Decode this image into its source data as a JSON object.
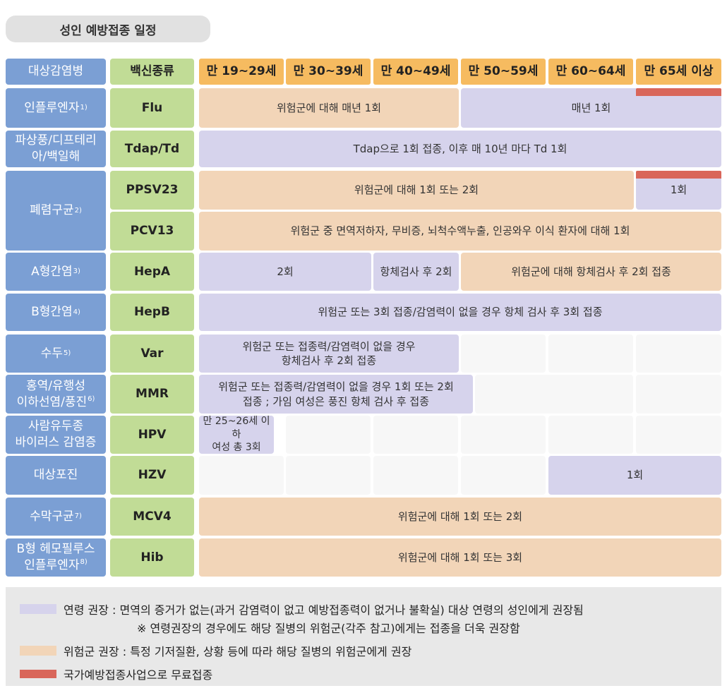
{
  "title": "성인 예방접종 일정",
  "header": {
    "disease": "대상감염병",
    "vaccine": "백신종류",
    "ages": [
      "만 19~29세",
      "만 30~39세",
      "만 40~49세",
      "만 50~59세",
      "만 60~64세",
      "만 65세 이상"
    ]
  },
  "rows": {
    "flu": {
      "disease": "인플루엔자",
      "note": "1)",
      "vaccine": "Flu",
      "risk_text": "위험군에 대해 매년 1회",
      "age_text": "매년 1회"
    },
    "tdap": {
      "disease_line1": "파상풍/디프테리",
      "disease_line2": "아/백일해",
      "vaccine": "Tdap/Td",
      "text": "Tdap으로 1회 접종, 이후 매 10년 마다 Td 1회"
    },
    "pneumo": {
      "disease": "폐렴구균",
      "note": "2)",
      "ppsv_vaccine": "PPSV23",
      "ppsv_risk_text": "위험군에 대해 1회 또는 2회",
      "ppsv_age_text": "1회",
      "pcv_vaccine": "PCV13",
      "pcv_text": "위험군 중 면역저하자, 무비증, 뇌척수액누출, 인공와우 이식 환자에 대해 1회"
    },
    "hepa": {
      "disease": "A형간염",
      "note": "3)",
      "vaccine": "HepA",
      "text1": "2회",
      "text2": "항체검사 후 2회",
      "text3": "위험군에 대해 항체검사 후 2회 접종"
    },
    "hepb": {
      "disease": "B형간염",
      "note": "4)",
      "vaccine": "HepB",
      "text": "위험군 또는 3회 접종/감염력이 없을 경우 항체 검사 후 3회 접종"
    },
    "var": {
      "disease": "수두",
      "note": "5)",
      "vaccine": "Var",
      "text_line1": "위험군 또는 접종력/감염력이 없을 경우",
      "text_line2": "항체검사 후 2회 접종"
    },
    "mmr": {
      "disease_line1": "홍역/유행성",
      "disease_line2": "이하선염/풍진",
      "note": "6)",
      "vaccine": "MMR",
      "text_line1": "위험군 또는 접종력/감염력이 없을 경우 1회 또는 2회",
      "text_line2": "접종 ; 가임 여성은 풍진 항체 검사 후 접종"
    },
    "hpv": {
      "disease_line1": "사람유두종",
      "disease_line2": "바이러스 감염증",
      "vaccine": "HPV",
      "text_line1": "만 25~26세 이하",
      "text_line2": "여성 총 3회"
    },
    "hzv": {
      "disease": "대상포진",
      "vaccine": "HZV",
      "text": "1회"
    },
    "mcv": {
      "disease": "수막구균",
      "note": "7)",
      "vaccine": "MCV4",
      "text": "위험군에 대해 1회 또는 2회"
    },
    "hib": {
      "disease_line1": "B형 헤모필루스",
      "disease_line2": "인플루엔자",
      "note": "8)",
      "vaccine": "Hib",
      "text": "위험군에 대해 1회 또는 3회"
    }
  },
  "legend": {
    "age_line1": "연령 권장 : 면역의 증거가 없는(과거 감염력이 없고 예방접종력이 없거나 불확실) 대상 연령의 성인에게 권장됨",
    "age_line2": "※ 연령권장의 경우에도 해당 질병의 위험군(각주 참고)에게는 접종을 더욱 권장함",
    "risk": "위험군 권장 : 특정 기저질환, 상황 등에 따라 해당 질병의 위험군에게 권장",
    "free": "국가예방접종사업으로 무료접종"
  },
  "colors": {
    "age_recommend": "#d6d3ec",
    "risk_recommend": "#f2d5b8",
    "free_program": "#d9665a",
    "disease_header": "#7b9fd4",
    "vaccine_header": "#c1dc96",
    "age_header": "#f6bb60"
  }
}
